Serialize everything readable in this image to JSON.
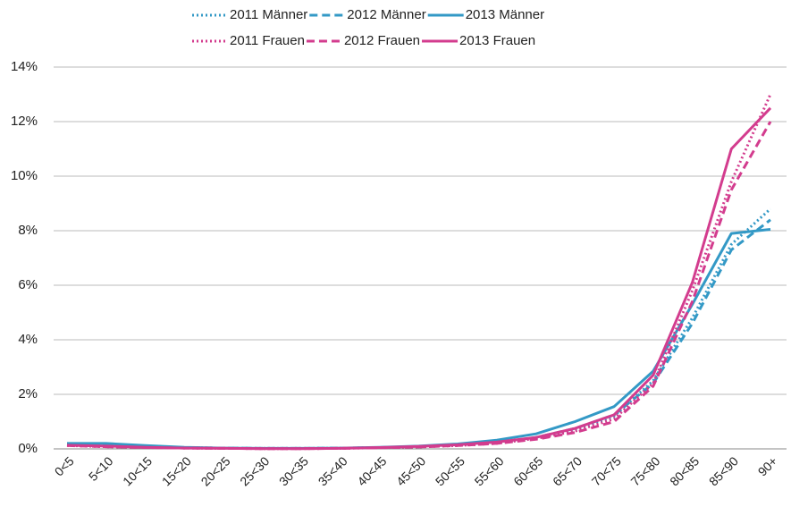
{
  "chart_data": {
    "type": "line",
    "categories": [
      "0<5",
      "5<10",
      "10<15",
      "15<20",
      "20<25",
      "25<30",
      "30<35",
      "35<40",
      "40<45",
      "45<50",
      "50<55",
      "55<60",
      "60<65",
      "65<70",
      "70<75",
      "75<80",
      "80<85",
      "85<90",
      "90+"
    ],
    "series": [
      {
        "name": "2011 Männer",
        "color": "#3399c6",
        "dash": "dotted",
        "values": [
          0.15,
          0.12,
          0.08,
          0.05,
          0.03,
          0.02,
          0.02,
          0.03,
          0.05,
          0.08,
          0.13,
          0.22,
          0.4,
          0.7,
          1.2,
          2.5,
          4.8,
          7.5,
          8.8
        ]
      },
      {
        "name": "2012 Männer",
        "color": "#3399c6",
        "dash": "dashed",
        "values": [
          0.15,
          0.12,
          0.08,
          0.05,
          0.03,
          0.02,
          0.02,
          0.03,
          0.05,
          0.08,
          0.13,
          0.22,
          0.42,
          0.75,
          1.25,
          2.4,
          4.6,
          7.3,
          8.4
        ]
      },
      {
        "name": "2013 Männer",
        "color": "#3399c6",
        "dash": "solid",
        "values": [
          0.2,
          0.2,
          0.12,
          0.06,
          0.03,
          0.02,
          0.02,
          0.03,
          0.06,
          0.1,
          0.18,
          0.32,
          0.55,
          1.0,
          1.55,
          2.85,
          5.3,
          7.9,
          8.05
        ]
      },
      {
        "name": "2011 Frauen",
        "color": "#d33c8e",
        "dash": "dotted",
        "values": [
          0.12,
          0.08,
          0.05,
          0.03,
          0.02,
          0.01,
          0.01,
          0.02,
          0.04,
          0.07,
          0.12,
          0.2,
          0.38,
          0.65,
          1.1,
          2.4,
          5.8,
          9.8,
          13.0
        ]
      },
      {
        "name": "2012 Frauen",
        "color": "#d33c8e",
        "dash": "dashed",
        "values": [
          0.12,
          0.08,
          0.05,
          0.03,
          0.02,
          0.01,
          0.01,
          0.02,
          0.04,
          0.07,
          0.12,
          0.2,
          0.35,
          0.6,
          1.0,
          2.3,
          5.4,
          9.5,
          12.0
        ]
      },
      {
        "name": "2013 Frauen",
        "color": "#d33c8e",
        "dash": "solid",
        "values": [
          0.13,
          0.1,
          0.06,
          0.03,
          0.02,
          0.01,
          0.01,
          0.02,
          0.05,
          0.09,
          0.15,
          0.25,
          0.42,
          0.75,
          1.25,
          2.7,
          6.1,
          11.0,
          12.5
        ]
      }
    ],
    "ylim": [
      0,
      14
    ],
    "yticks": [
      {
        "value": 0,
        "label": "0%"
      },
      {
        "value": 2,
        "label": "2%"
      },
      {
        "value": 4,
        "label": "4%"
      },
      {
        "value": 6,
        "label": "6%"
      },
      {
        "value": 8,
        "label": "8%"
      },
      {
        "value": 10,
        "label": "10%"
      },
      {
        "value": 12,
        "label": "12%"
      },
      {
        "value": 14,
        "label": "14%"
      }
    ],
    "grid": true,
    "legend": "top"
  }
}
